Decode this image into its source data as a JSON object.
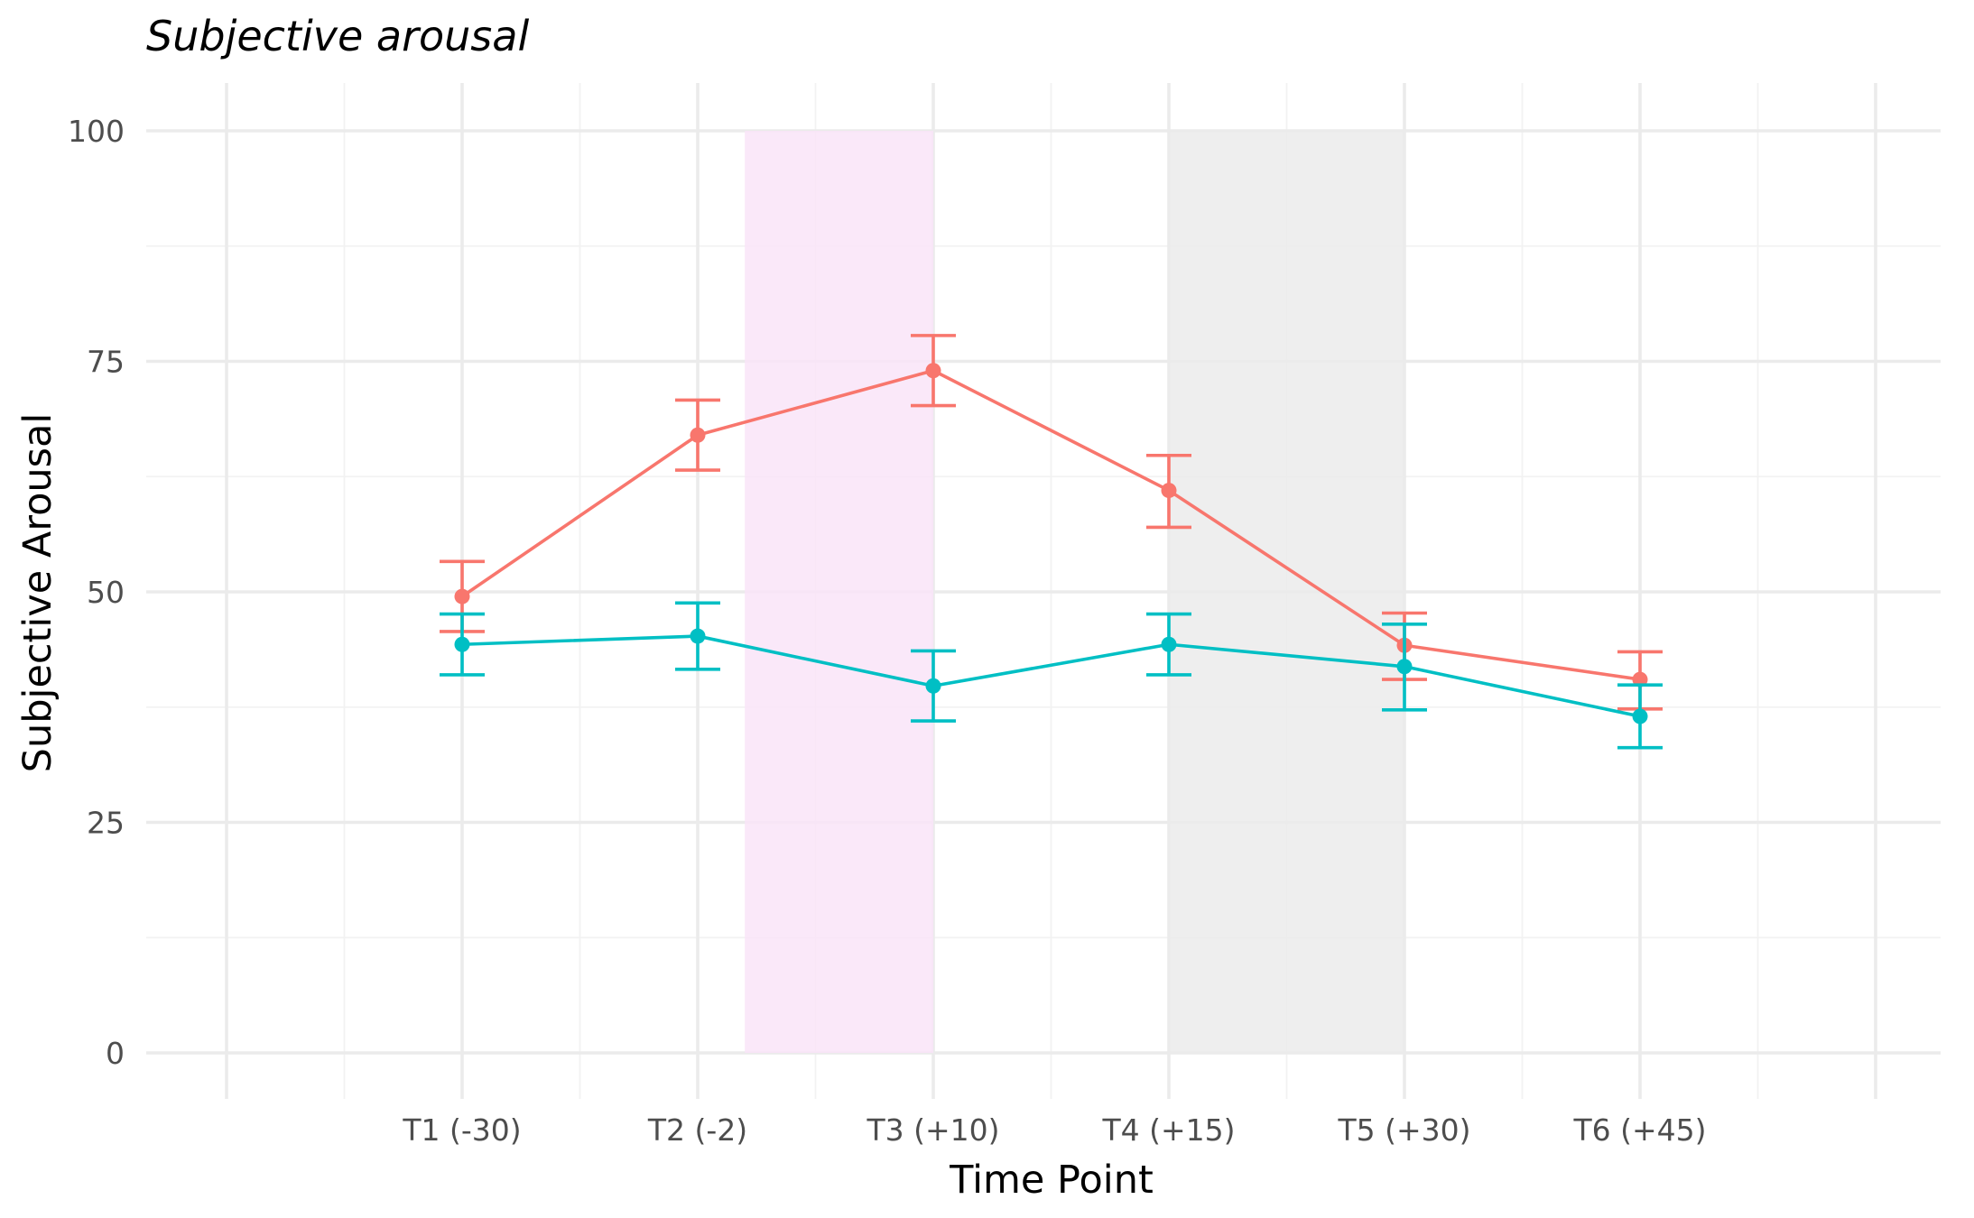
{
  "chart_data": {
    "type": "line",
    "title": "Subjective arousal",
    "xlabel": "Time Point",
    "ylabel": "Subjective Arousal",
    "categories": [
      "T1 (-30)",
      "T2 (-2)",
      "T3 (+10)",
      "T4 (+15)",
      "T5 (+30)",
      "T6 (+45)"
    ],
    "ylim": [
      0,
      100
    ],
    "yticks": [
      0,
      25,
      50,
      75,
      100
    ],
    "grid": true,
    "legend": "none",
    "series": [
      {
        "color": "#F8766D",
        "values": [
          49.5,
          67.0,
          74.0,
          61.0,
          44.2,
          40.5
        ],
        "err_low": [
          45.7,
          63.2,
          70.2,
          57.0,
          40.5,
          37.3
        ],
        "err_high": [
          53.3,
          70.8,
          77.8,
          64.8,
          47.7,
          43.5
        ]
      },
      {
        "color": "#00BFC4",
        "values": [
          44.3,
          45.2,
          39.8,
          44.3,
          41.9,
          36.5
        ],
        "err_low": [
          41.0,
          41.6,
          36.0,
          41.0,
          37.2,
          33.1
        ],
        "err_high": [
          47.6,
          48.8,
          43.6,
          47.6,
          46.5,
          39.9
        ]
      }
    ],
    "shaded_regions": [
      {
        "x_from": 1.2,
        "x_to": 2.0,
        "y_from": 0,
        "y_to": 100,
        "color": "#F9E4F8"
      },
      {
        "x_from": 3.0,
        "x_to": 4.0,
        "y_from": 0,
        "y_to": 100,
        "color": "#EBEBEB"
      }
    ]
  }
}
